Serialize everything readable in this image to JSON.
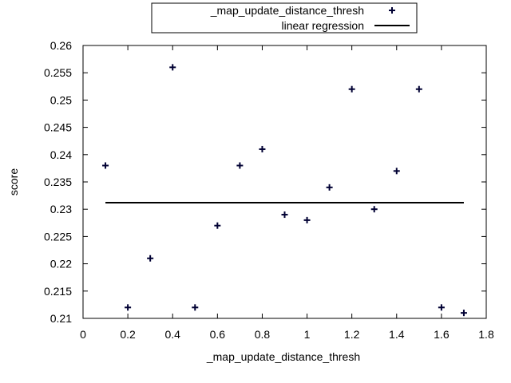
{
  "chart_data": {
    "type": "scatter",
    "xlabel": "_map_update_distance_thresh",
    "ylabel": "score",
    "xlim": [
      0,
      1.8
    ],
    "ylim": [
      0.21,
      0.26
    ],
    "xticks": [
      "0",
      "0.2",
      "0.4",
      "0.6",
      "0.8",
      "1",
      "1.2",
      "1.4",
      "1.6",
      "1.8"
    ],
    "yticks": [
      "0.21",
      "0.215",
      "0.22",
      "0.225",
      "0.23",
      "0.235",
      "0.24",
      "0.245",
      "0.25",
      "0.255",
      "0.26"
    ],
    "grid": false,
    "legend_position": "top",
    "series": [
      {
        "name": "_map_update_distance_thresh",
        "marker": "+",
        "color": "#000033",
        "x": [
          0.1,
          0.2,
          0.3,
          0.4,
          0.5,
          0.6,
          0.7,
          0.8,
          0.9,
          1.0,
          1.1,
          1.2,
          1.3,
          1.4,
          1.5,
          1.6,
          1.7
        ],
        "y": [
          0.238,
          0.212,
          0.221,
          0.256,
          0.212,
          0.227,
          0.238,
          0.241,
          0.229,
          0.228,
          0.234,
          0.252,
          0.23,
          0.237,
          0.252,
          0.212,
          0.211
        ]
      },
      {
        "name": "linear regression",
        "type": "line",
        "color": "#000000",
        "x": [
          0.1,
          1.7
        ],
        "y": [
          0.2312,
          0.2312
        ]
      }
    ]
  }
}
